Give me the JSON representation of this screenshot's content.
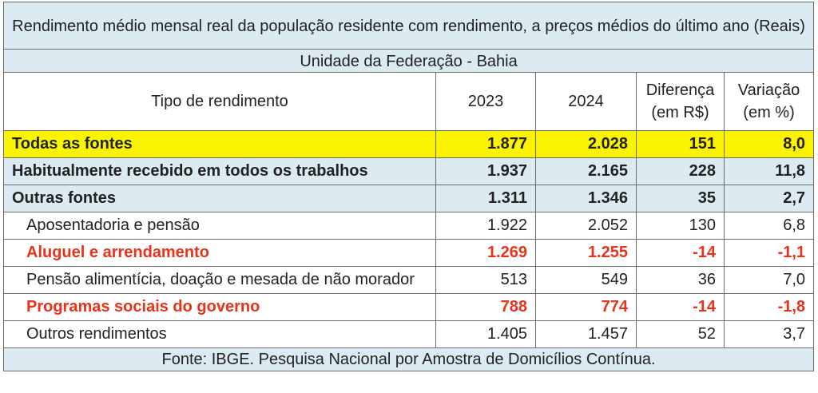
{
  "title": "Rendimento médio mensal real da população residente com rendimento, a preços médios do último ano (Reais)",
  "subtitle": "Unidade da Federação - Bahia",
  "headers": {
    "tipo": "Tipo de rendimento",
    "y2023": "2023",
    "y2024": "2024",
    "diferenca_l1": "Diferença",
    "diferenca_l2": "(em R$)",
    "variacao_l1": "Variação",
    "variacao_l2": "(em %)"
  },
  "rows": [
    {
      "label": "Todas as fontes",
      "v2023": "1.877",
      "v2024": "2.028",
      "diff": "151",
      "var": "8,0"
    },
    {
      "label": "Habitualmente recebido em todos os trabalhos",
      "v2023": "1.937",
      "v2024": "2.165",
      "diff": "228",
      "var": "11,8"
    },
    {
      "label": "Outras fontes",
      "v2023": "1.311",
      "v2024": "1.346",
      "diff": "35",
      "var": "2,7"
    },
    {
      "label": "Aposentadoria e pensão",
      "v2023": "1.922",
      "v2024": "2.052",
      "diff": "130",
      "var": "6,8"
    },
    {
      "label": "Aluguel e arrendamento",
      "v2023": "1.269",
      "v2024": "1.255",
      "diff": "-14",
      "var": "-1,1"
    },
    {
      "label": "Pensão alimentícia, doação e mesada de não morador",
      "v2023": "513",
      "v2024": "549",
      "diff": "36",
      "var": "7,0"
    },
    {
      "label": "Programas sociais do governo",
      "v2023": "788",
      "v2024": "774",
      "diff": "-14",
      "var": "-1,8"
    },
    {
      "label": "Outros rendimentos",
      "v2023": "1.405",
      "v2024": "1.457",
      "diff": "52",
      "var": "3,7"
    }
  ],
  "colors": {
    "highlight_yellow": "#fbf400",
    "header_blue": "#dceaf1",
    "negative_red": "#e8321a"
  },
  "footer": "Fonte: IBGE. Pesquisa Nacional por Amostra de Domicílios Contínua."
}
